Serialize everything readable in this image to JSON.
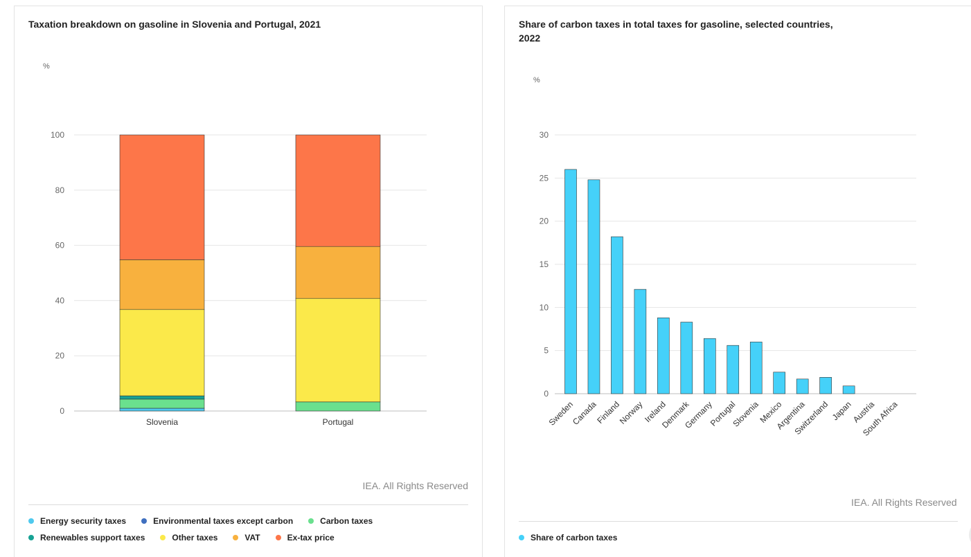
{
  "left": {
    "title": "Taxation breakdown on gasoline in Slovenia and Portugal, 2021",
    "unit": "%",
    "credit": "IEA. All Rights Reserved",
    "legend": [
      {
        "label": "Energy security taxes",
        "color": "#4fc9ee"
      },
      {
        "label": "Environmental taxes except carbon",
        "color": "#3f6fbf"
      },
      {
        "label": "Carbon taxes",
        "color": "#6ae08e"
      },
      {
        "label": "Renewables support taxes",
        "color": "#17a294"
      },
      {
        "label": "Other taxes",
        "color": "#fbe94a"
      },
      {
        "label": "VAT",
        "color": "#f8b13e"
      },
      {
        "label": "Ex-tax price",
        "color": "#fd7649"
      }
    ]
  },
  "right": {
    "title": "Share of carbon taxes in total taxes for gasoline, selected countries, 2022",
    "unit": "%",
    "credit": "IEA. All Rights Reserved",
    "legend": [
      {
        "label": "Share of carbon taxes",
        "color": "#45d1f9"
      }
    ]
  },
  "chart_data": [
    {
      "type": "bar",
      "stacked": true,
      "title": "Taxation breakdown on gasoline in Slovenia and Portugal, 2021",
      "ylabel": "%",
      "categories": [
        "Slovenia",
        "Portugal"
      ],
      "ylim": [
        0,
        100
      ],
      "yticks": [
        0,
        20,
        40,
        60,
        80,
        100
      ],
      "series": [
        {
          "name": "Energy security taxes",
          "color": "#4fc9ee",
          "values": [
            1.0,
            0
          ]
        },
        {
          "name": "Environmental taxes except carbon",
          "color": "#3f6fbf",
          "values": [
            0,
            0
          ]
        },
        {
          "name": "Carbon taxes",
          "color": "#6ae08e",
          "values": [
            3.3,
            3.3
          ]
        },
        {
          "name": "Renewables support taxes",
          "color": "#17a294",
          "values": [
            1.2,
            0
          ]
        },
        {
          "name": "Other taxes",
          "color": "#fbe94a",
          "values": [
            31.3,
            37.5
          ]
        },
        {
          "name": "VAT",
          "color": "#f8b13e",
          "values": [
            18.0,
            18.8
          ]
        },
        {
          "name": "Ex-tax price",
          "color": "#fd7649",
          "values": [
            45.2,
            40.4
          ]
        }
      ]
    },
    {
      "type": "bar",
      "title": "Share of carbon taxes in total taxes for gasoline, selected countries, 2022",
      "ylabel": "%",
      "categories": [
        "Sweden",
        "Canada",
        "Finland",
        "Norway",
        "Ireland",
        "Denmark",
        "Germany",
        "Portugal",
        "Slovenia",
        "Mexico",
        "Argentina",
        "Switzerland",
        "Japan",
        "Austria",
        "South Africa"
      ],
      "ylim": [
        0,
        30
      ],
      "yticks": [
        0,
        5,
        10,
        15,
        20,
        25,
        30
      ],
      "series": [
        {
          "name": "Share of carbon taxes",
          "color": "#45d1f9",
          "values": [
            26.0,
            24.8,
            18.2,
            12.1,
            8.8,
            8.3,
            6.4,
            5.6,
            6.0,
            2.5,
            1.7,
            1.9,
            0.9,
            0,
            0
          ]
        }
      ]
    }
  ]
}
